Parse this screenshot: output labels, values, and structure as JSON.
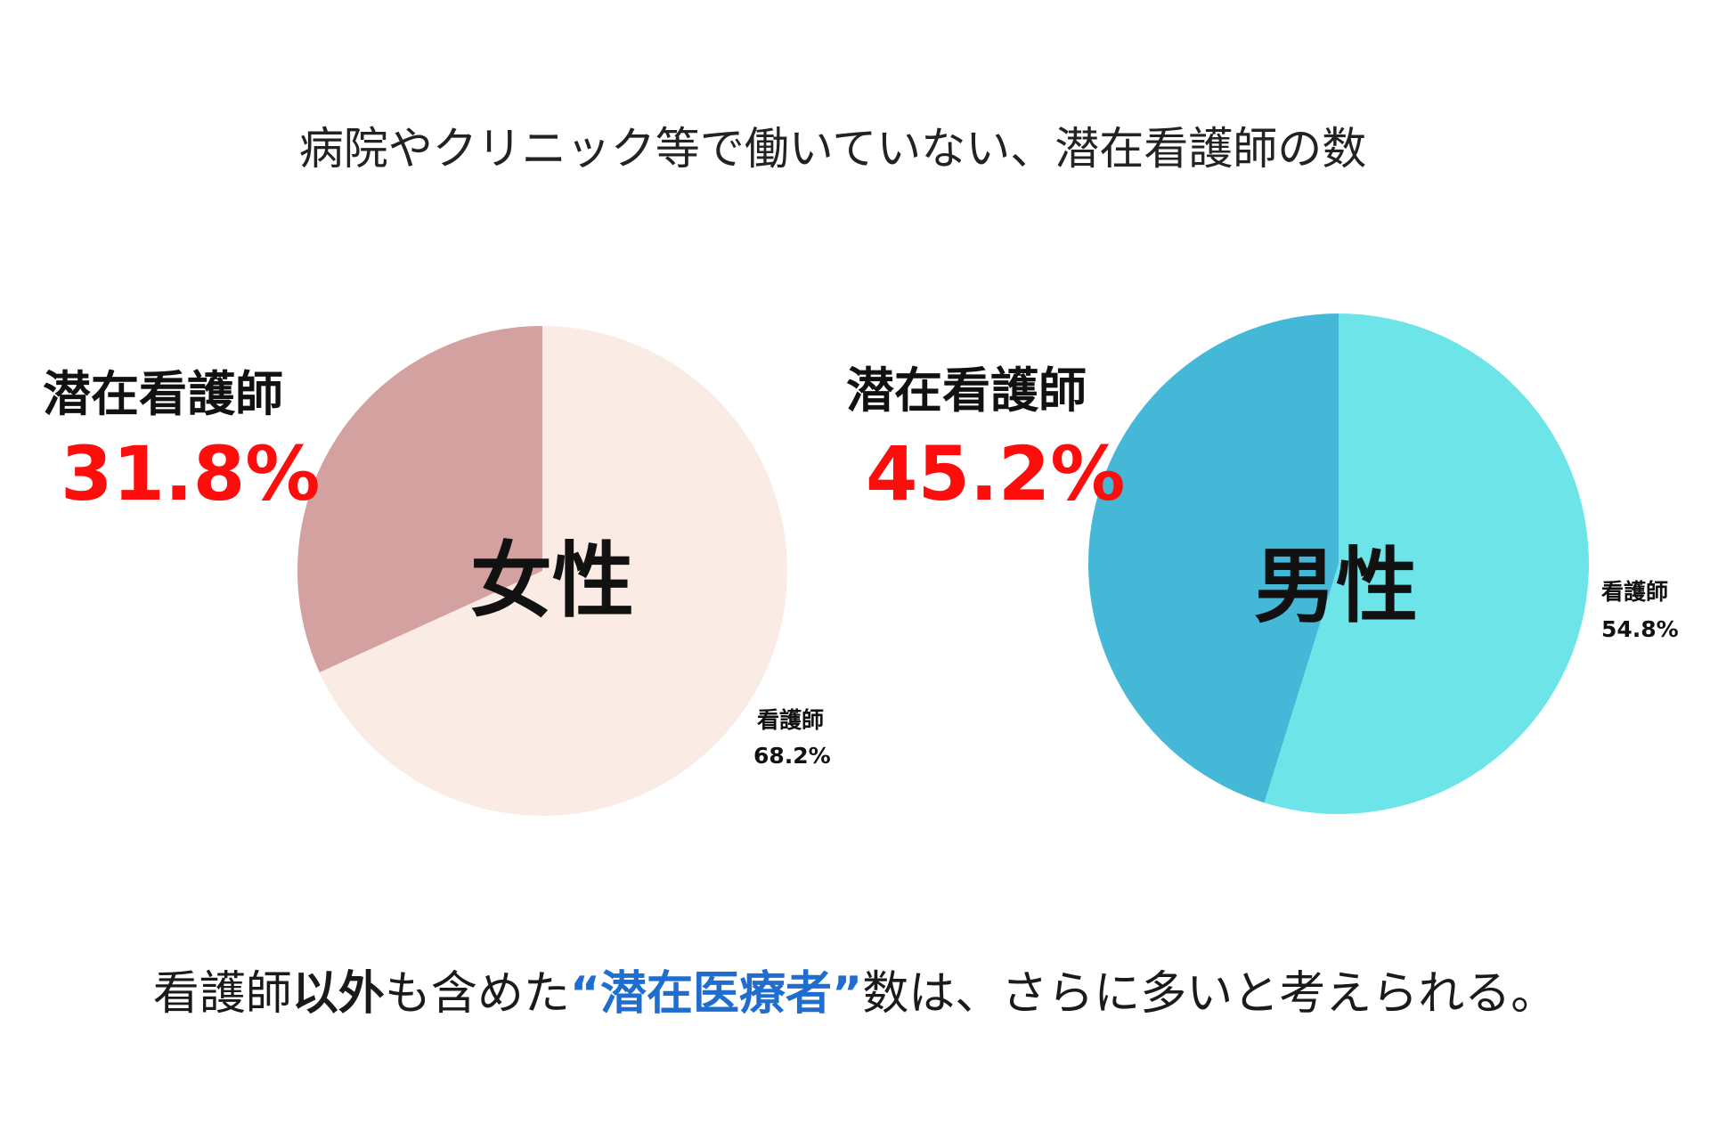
{
  "colors": {
    "highlight_red": "#ff0d0d",
    "accent_blue": "#1f6ecf",
    "female_latent": "#d4a1a1",
    "female_nurse": "#faece5",
    "male_latent": "#44b8d6",
    "male_nurse": "#6ce4e8"
  },
  "chart_data": {
    "title": "病院やクリニック等で働いていない、潜在看護師の数",
    "type": "pie",
    "charts": [
      {
        "type": "pie",
        "center_label": "女性",
        "slices": [
          {
            "label": "潜在看護師",
            "value": 31.8,
            "display": "31.8%",
            "color": "#d4a1a1"
          },
          {
            "label": "看護師",
            "value": 68.2,
            "display": "68.2%",
            "color": "#faece5"
          }
        ]
      },
      {
        "type": "pie",
        "center_label": "男性",
        "slices": [
          {
            "label": "潜在看護師",
            "value": 45.2,
            "display": "45.2%",
            "color": "#44b8d6"
          },
          {
            "label": "看護師",
            "value": 54.8,
            "display": "54.8%",
            "color": "#6ce4e8"
          }
        ]
      }
    ]
  },
  "footer": {
    "part1": "看護師",
    "part2": "以外",
    "part3": "も含めた",
    "part4": "“潜在医療者”",
    "part5": "数は、さらに多いと考えられる。"
  }
}
